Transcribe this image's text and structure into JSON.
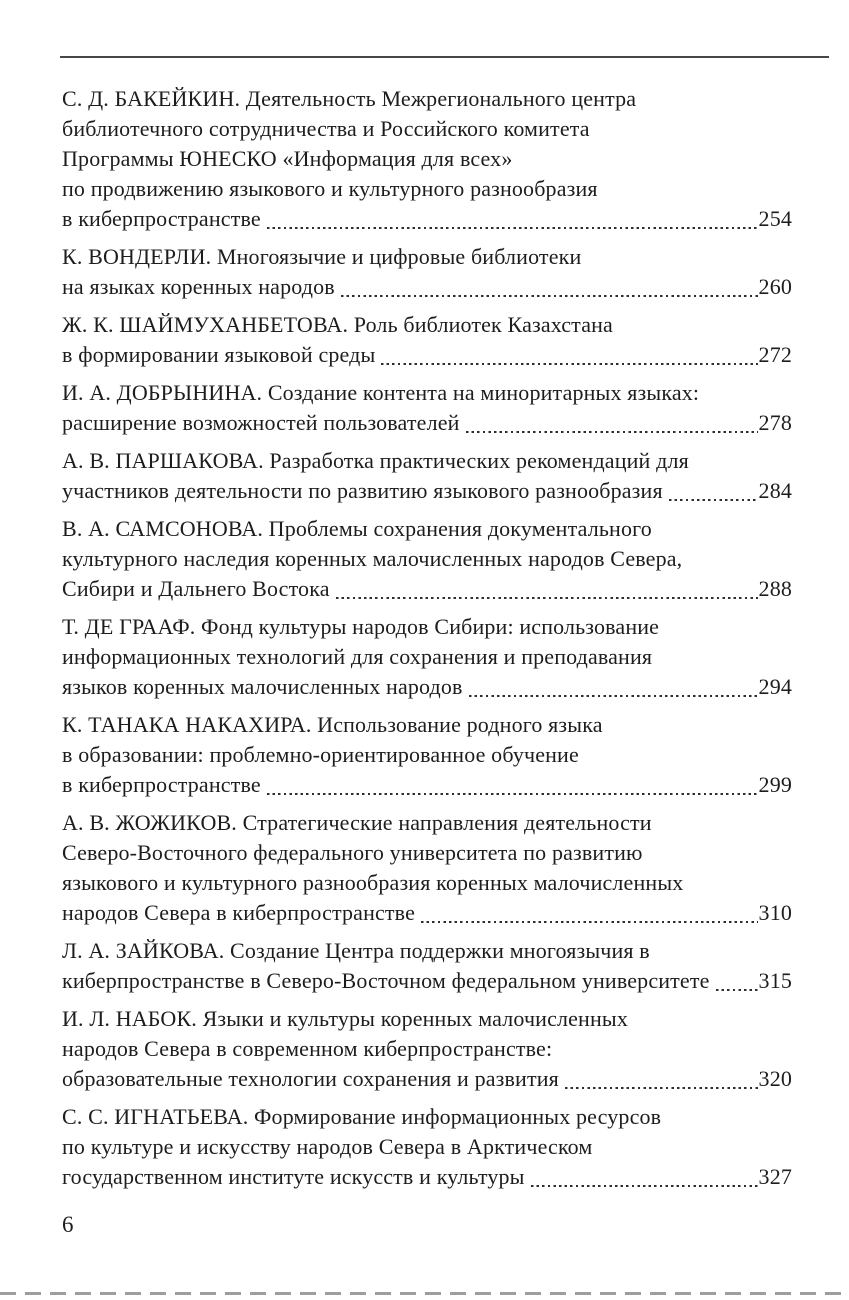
{
  "page": {
    "folio": "6"
  },
  "toc": {
    "entries": [
      {
        "lines": [
          "С. Д. БАКЕЙКИН. Деятельность Межрегионального центра",
          "библиотечного сотрудничества и Российского комитета",
          "Программы ЮНЕСКО «Информация для всех»",
          "по продвижению языкового и культурного разнообразия"
        ],
        "last_line": "в киберпространстве",
        "page": "254"
      },
      {
        "lines": [
          "К. ВОНДЕРЛИ. Многоязычие и цифровые библиотеки"
        ],
        "last_line": "на языках коренных народов",
        "page": "260"
      },
      {
        "lines": [
          "Ж. К. ШАЙМУХАНБЕТОВА. Роль библиотек Казахстана"
        ],
        "last_line": "в формировании языковой среды",
        "page": "272"
      },
      {
        "lines": [
          "И. А. ДОБРЫНИНА. Создание контента на миноритарных языках:"
        ],
        "last_line": "расширение возможностей пользователей",
        "page": "278"
      },
      {
        "lines": [
          "А. В. ПАРШАКОВА. Разработка практических рекомендаций для"
        ],
        "last_line": "участников деятельности по развитию языкового разнообразия",
        "page": "284"
      },
      {
        "lines": [
          "В. А. САМСОНОВА. Проблемы сохранения документального",
          "культурного наследия коренных малочисленных народов Севера,"
        ],
        "last_line": "Сибири и Дальнего Востока",
        "page": "288"
      },
      {
        "lines": [
          "Т. ДЕ ГРААФ. Фонд культуры народов Сибири: использование",
          "информационных технологий для сохранения и преподавания"
        ],
        "last_line": "языков коренных малочисленных народов",
        "page": "294"
      },
      {
        "lines": [
          "К. ТАНАКА НАКАХИРА. Использование родного языка",
          "в образовании: проблемно-ориентированное обучение"
        ],
        "last_line": "в киберпространстве",
        "page": "299"
      },
      {
        "lines": [
          "А. В. ЖОЖИКОВ. Стратегические направления деятельности",
          "Северо-Восточного федерального университета по развитию",
          "языкового и культурного разнообразия коренных малочисленных"
        ],
        "last_line": "народов Севера в киберпространстве",
        "page": "310"
      },
      {
        "lines": [
          "Л. А. ЗАЙКОВА. Создание Центра поддержки многоязычия в"
        ],
        "last_line": "киберпространстве в Северо-Восточном федеральном университете",
        "page": "315"
      },
      {
        "lines": [
          "И. Л. НАБОК. Языки и культуры коренных малочисленных",
          "народов Севера в современном киберпространстве:"
        ],
        "last_line": "образовательные технологии сохранения и развития",
        "page": "320"
      },
      {
        "lines": [
          "С. С. ИГНАТЬЕВА. Формирование информационных ресурсов",
          "по культуре и искусству народов Севера в Арктическом"
        ],
        "last_line": "государственном институте искусств и культуры",
        "page": "327"
      }
    ]
  }
}
